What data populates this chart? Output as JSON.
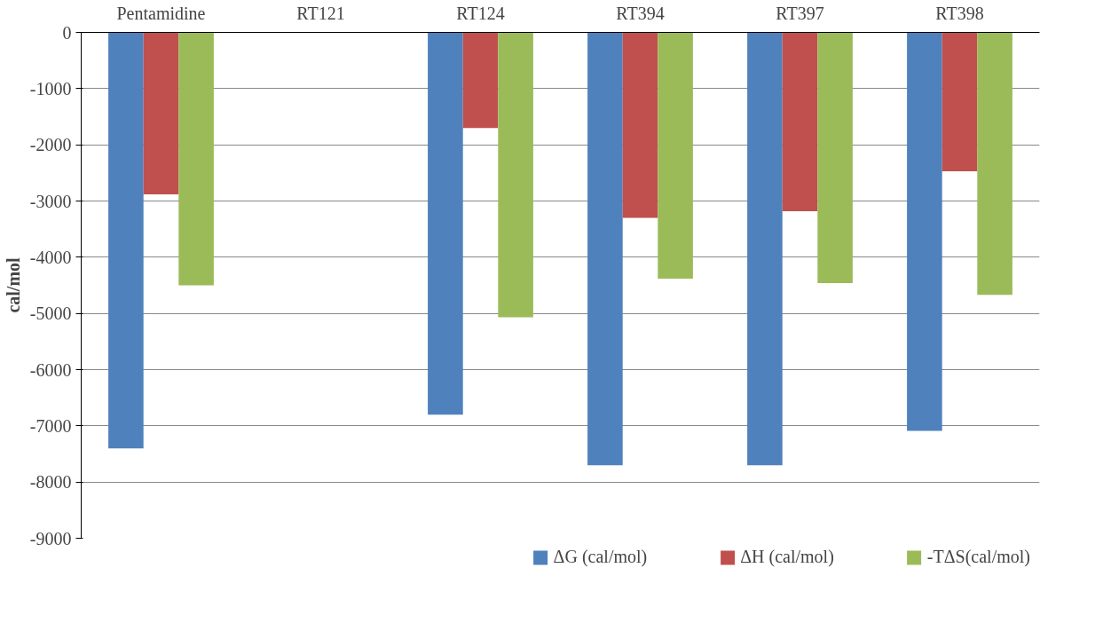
{
  "chart_data": {
    "type": "bar",
    "ylabel": "cal/mol",
    "categories": [
      "Pentamidine",
      "RT121",
      "RT124",
      "RT394",
      "RT397",
      "RT398"
    ],
    "series": [
      {
        "name": "ΔG (cal/mol)",
        "color": "#4f81bd",
        "values": [
          -7400,
          null,
          -6800,
          -7700,
          -7700,
          -7090
        ]
      },
      {
        "name": "ΔH (cal/mol)",
        "color": "#c0504d",
        "values": [
          -2880,
          null,
          -1700,
          -3300,
          -3180,
          -2470
        ]
      },
      {
        "name": "-TΔS(cal/mol)",
        "color": "#9bbb59",
        "values": [
          -4500,
          null,
          -5070,
          -4380,
          -4460,
          -4670
        ]
      }
    ],
    "ylim": [
      -9000,
      0
    ],
    "yticks": [
      -9000,
      -8000,
      -7000,
      -6000,
      -5000,
      -4000,
      -3000,
      -2000,
      -1000,
      0
    ],
    "grid": "y",
    "legend": "bottom"
  }
}
